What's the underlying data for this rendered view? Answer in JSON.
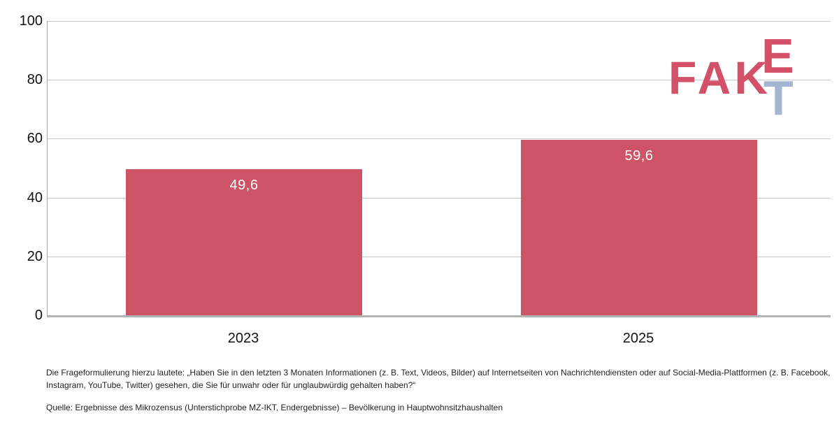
{
  "chart_data": {
    "type": "bar",
    "categories": [
      "2023",
      "2025"
    ],
    "values": [
      49.6,
      59.6
    ],
    "value_labels": [
      "49,6",
      "59,6"
    ],
    "ylim": [
      0,
      100
    ],
    "yticks": [
      0,
      20,
      40,
      60,
      80,
      100
    ],
    "grid": true,
    "legend": "none",
    "bar_color": "#cd5467",
    "value_label_color": "#ffffff",
    "title": "",
    "xlabel": "",
    "ylabel": ""
  },
  "logo": {
    "part_fak": "FAK",
    "part_e": "E",
    "part_t": "T",
    "red": "#d25168",
    "blue": "#a4b5d2"
  },
  "notes": {
    "line1": "Die Frageformulierung hierzu lautete: „Haben Sie in den letzten 3 Monaten Informationen (z. B. Text, Videos, Bilder) auf Internetseiten von Nachrichtendiensten oder auf Social-Media-Plattformen (z. B. Facebook,",
    "line2": "Instagram, YouTube, Twitter) gesehen, die Sie für unwahr oder für unglaubwürdig gehalten haben?“",
    "source": "Quelle: Ergebnisse des Mikrozensus (Unterstichprobe MZ-IKT, Endergebnisse) – Bevölkerung in Hauptwohnsitzhaushalten"
  }
}
